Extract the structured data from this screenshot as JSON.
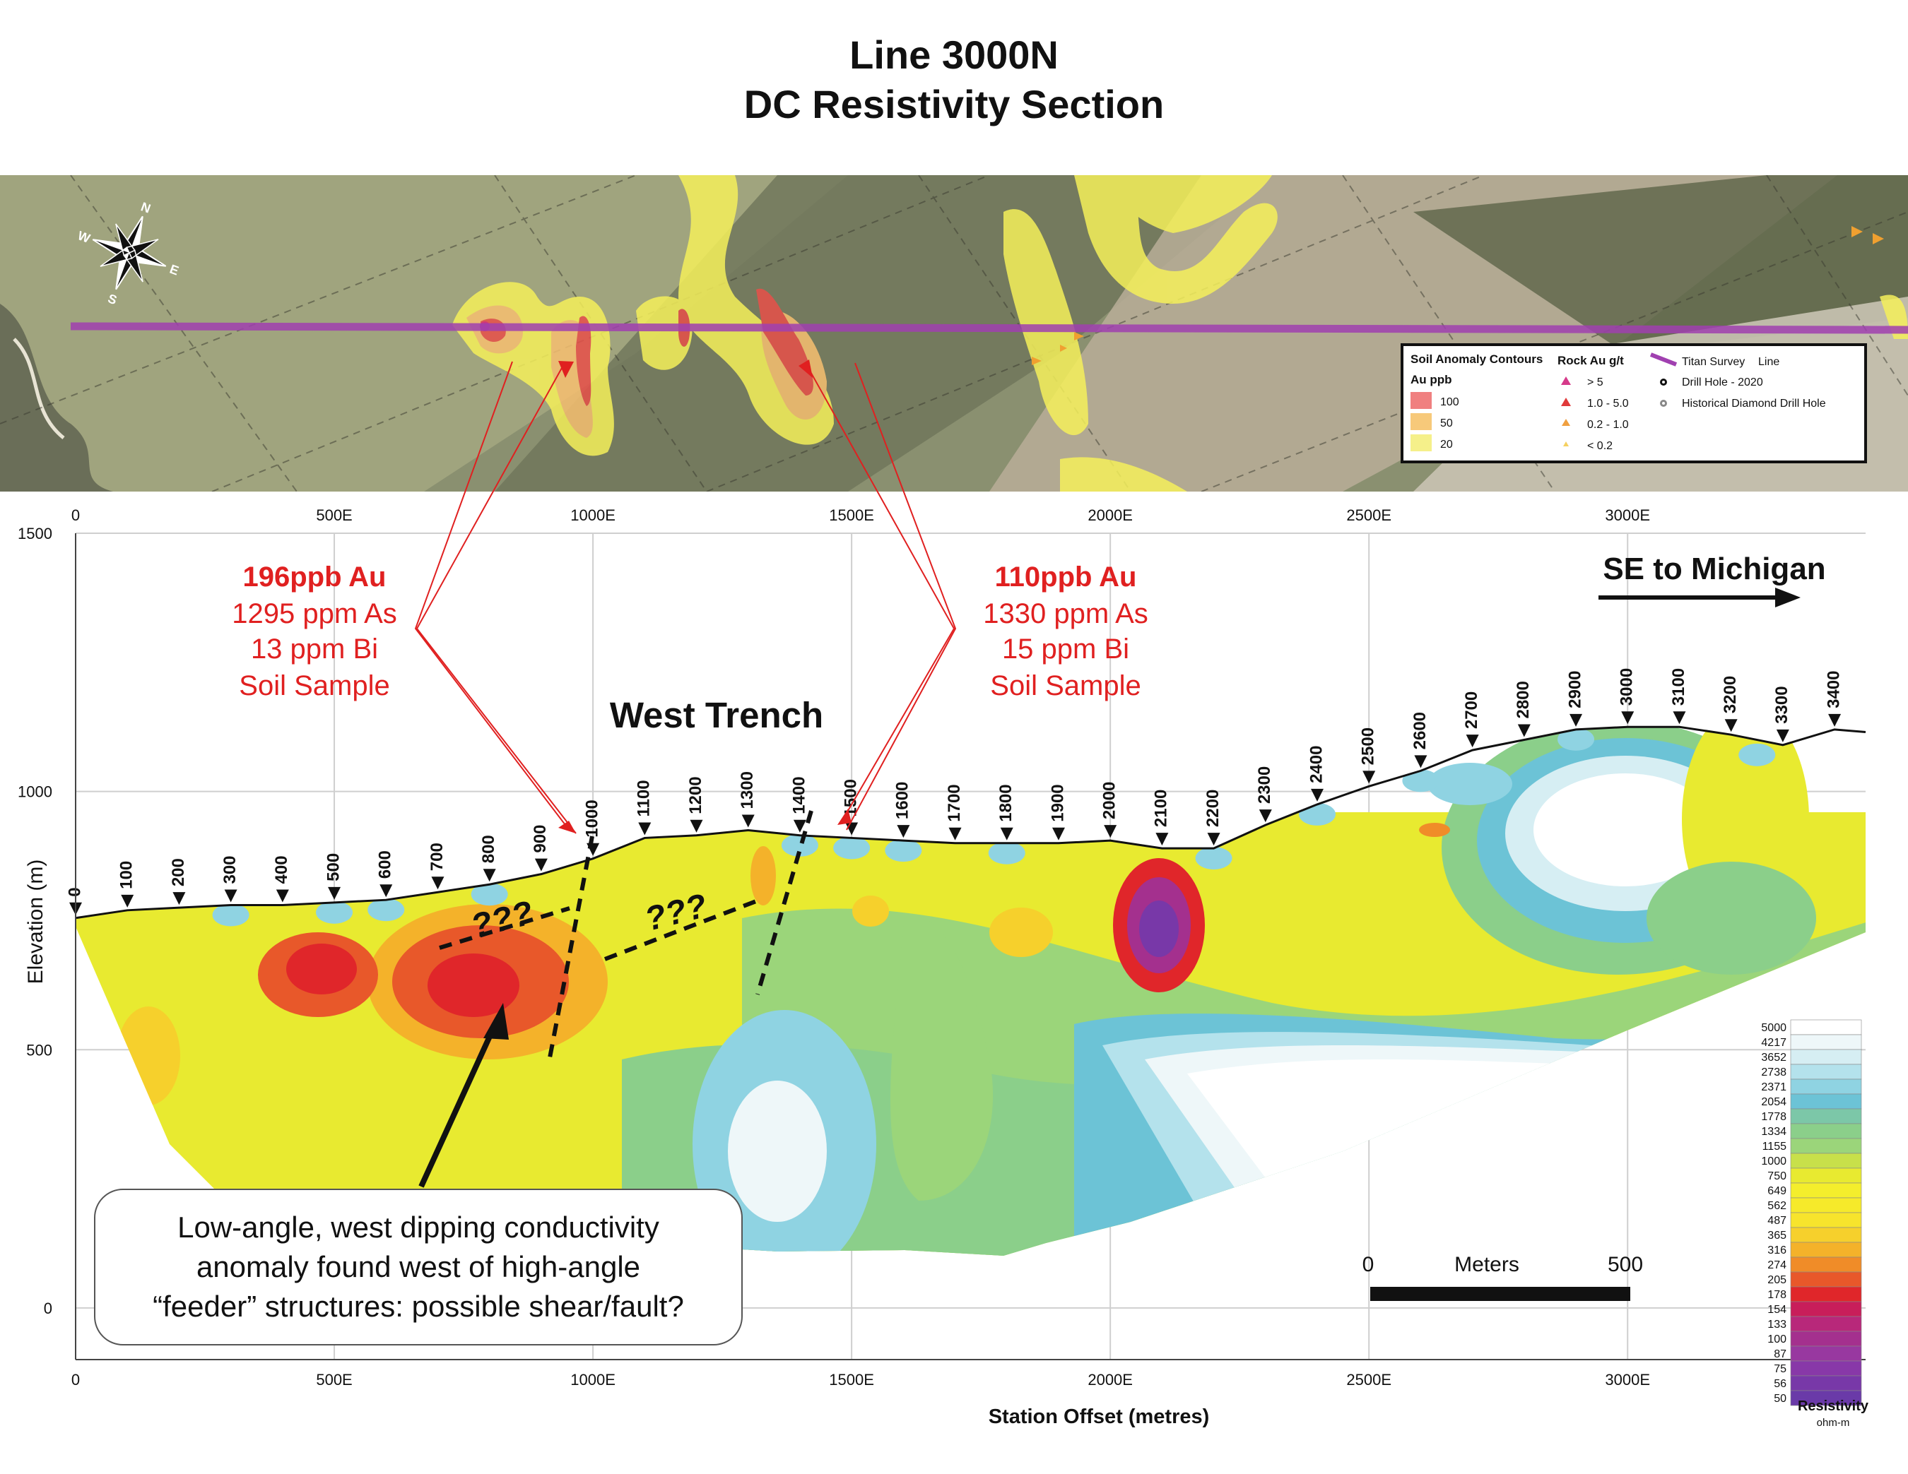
{
  "title": "Line 3000N",
  "subtitle": "DC Resistivity Section",
  "map": {
    "compass": {
      "n": "N",
      "e": "E",
      "s": "S",
      "w": "W"
    },
    "legend": {
      "soil_heading": "Soil Anomaly Contours",
      "soil_unit": "Au ppb",
      "soil_items": [
        {
          "label": "100",
          "color": "#f08080"
        },
        {
          "label": "50",
          "color": "#f7c97a"
        },
        {
          "label": "20",
          "color": "#f5f08a"
        }
      ],
      "rock_heading": "Rock Au g/t",
      "rock_items": [
        {
          "label": "> 5",
          "color": "#d63a8a"
        },
        {
          "label": "1.0 - 5.0",
          "color": "#e03a3a"
        },
        {
          "label": "0.2 - 1.0",
          "color": "#f0a040"
        },
        {
          "label": "< 0.2",
          "color": "#f5d060"
        }
      ],
      "survey_label_a": "Titan Survey",
      "survey_label_b": "Line",
      "drill_2020": "Drill Hole - 2020",
      "drill_hist": "Historical Diamond Drill Hole"
    }
  },
  "chart_data": {
    "type": "heatmap",
    "xlabel": "Station Offset (metres)",
    "ylabel": "Elevation (m)",
    "xlim": [
      0,
      3460
    ],
    "ylim": [
      -100,
      1500
    ],
    "x_ticks": [
      0,
      500,
      1000,
      1500,
      2000,
      2500,
      3000
    ],
    "x_tick_labels": [
      "0",
      "500E",
      "1000E",
      "1500E",
      "2000E",
      "2500E",
      "3000E"
    ],
    "y_ticks": [
      0,
      500,
      1000,
      1500
    ],
    "y_tick_labels": [
      "0",
      "500",
      "1000",
      "1500"
    ],
    "topography": {
      "x": [
        0,
        100,
        200,
        300,
        400,
        500,
        600,
        700,
        800,
        900,
        1000,
        1100,
        1200,
        1300,
        1400,
        1500,
        1600,
        1700,
        1800,
        1900,
        2000,
        2100,
        2200,
        2300,
        2400,
        2500,
        2600,
        2700,
        2800,
        2900,
        3000,
        3100,
        3200,
        3300,
        3400,
        3460
      ],
      "y": [
        755,
        770,
        775,
        780,
        780,
        785,
        790,
        805,
        820,
        840,
        870,
        910,
        915,
        925,
        915,
        910,
        905,
        900,
        900,
        900,
        905,
        890,
        890,
        935,
        975,
        1010,
        1040,
        1080,
        1100,
        1120,
        1125,
        1125,
        1110,
        1090,
        1120,
        1115
      ]
    },
    "stations": [
      "0",
      "100",
      "200",
      "300",
      "400",
      "500",
      "600",
      "700",
      "800",
      "900",
      "1000",
      "1100",
      "1200",
      "1300",
      "1400",
      "1500",
      "1600",
      "1700",
      "1800",
      "1900",
      "2000",
      "2100",
      "2200",
      "2300",
      "2400",
      "2500",
      "2600",
      "2700",
      "2800",
      "2900",
      "3000",
      "3100",
      "3200",
      "3300",
      "3400"
    ],
    "colorbar": {
      "title": "Resistivity",
      "unit": "ohm-m",
      "levels": [
        "5000",
        "4217",
        "3652",
        "2738",
        "2371",
        "2054",
        "1778",
        "1334",
        "1155",
        "1000",
        "750",
        "649",
        "562",
        "487",
        "365",
        "316",
        "274",
        "205",
        "178",
        "154",
        "133",
        "100",
        "87",
        "75",
        "56",
        "50"
      ],
      "colors": [
        "#ffffff",
        "#eef7f9",
        "#d6eef3",
        "#b4e2ec",
        "#8fd3e2",
        "#6cc3d6",
        "#7cc7a8",
        "#8bcf8a",
        "#9bd57a",
        "#c8e04a",
        "#e8ea30",
        "#f4ee2c",
        "#f6ea2a",
        "#f7e42c",
        "#f6d02c",
        "#f4b22a",
        "#f08c28",
        "#e8582a",
        "#e0262a",
        "#c81e5a",
        "#b8287a",
        "#a4308e",
        "#9838a0",
        "#8838a8",
        "#7838a8",
        "#6a3aa8"
      ]
    },
    "annotations": {
      "left_box": {
        "line1": "196ppb Au",
        "line2": "1295 ppm As",
        "line3": "13 ppm Bi",
        "line4": "Soil Sample"
      },
      "right_box": {
        "line1": "110ppb Au",
        "line2": "1330 ppm As",
        "line3": "15 ppm Bi",
        "line4": "Soil Sample"
      },
      "west_trench": "West Trench",
      "direction": "SE to Michigan",
      "question_1": "???",
      "question_2": "???",
      "callout": {
        "line1": "Low-angle, west dipping conductivity",
        "line2": "anomaly found west of high-angle",
        "line3": "“feeder” structures: possible shear/fault?"
      },
      "scale": {
        "zero": "0",
        "unit": "Meters",
        "end": "500"
      }
    }
  }
}
